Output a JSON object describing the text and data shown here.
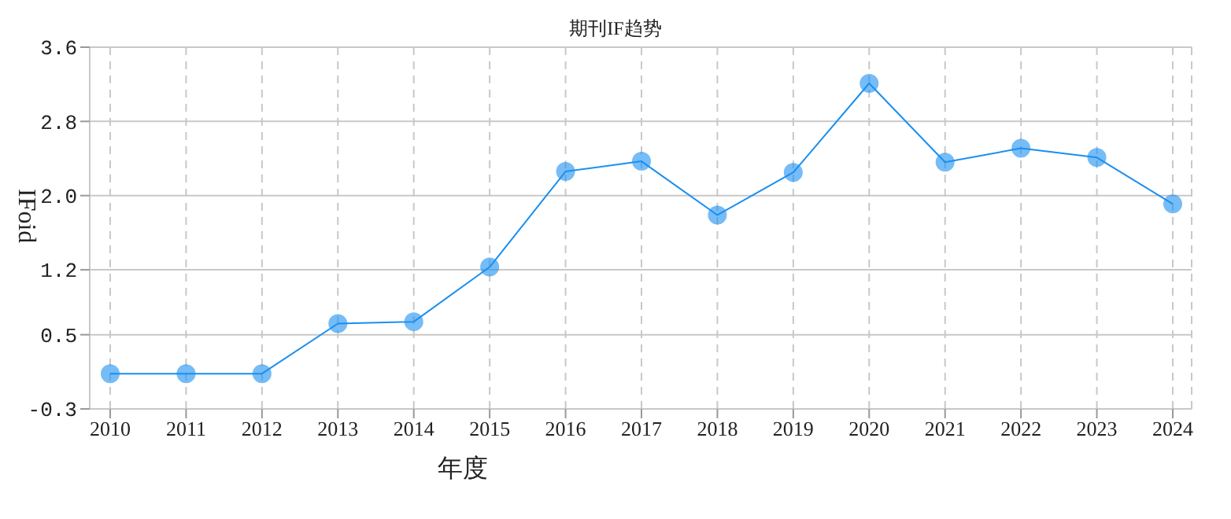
{
  "chart_data": {
    "type": "line",
    "title": "期刊IF趋势",
    "xlabel": "年度",
    "ylabel": "IFoid",
    "categories": [
      "2010",
      "2011",
      "2012",
      "2013",
      "2014",
      "2015",
      "2016",
      "2017",
      "2018",
      "2019",
      "2020",
      "2021",
      "2022",
      "2023",
      "2024"
    ],
    "series": [
      {
        "color": "#1a8ff0",
        "values": [
          0.08,
          0.08,
          0.08,
          0.62,
          0.64,
          1.23,
          2.26,
          2.37,
          1.79,
          2.25,
          3.21,
          2.36,
          2.51,
          2.41,
          1.91
        ]
      }
    ],
    "ylim": [
      -0.3,
      3.6
    ],
    "yticks": [
      -0.3,
      0.5,
      1.2,
      {
        "value": 2.0,
        "label": "2.0"
      },
      2.8,
      3.6
    ],
    "grid": true,
    "marker": "circle",
    "line_style": "solid"
  }
}
